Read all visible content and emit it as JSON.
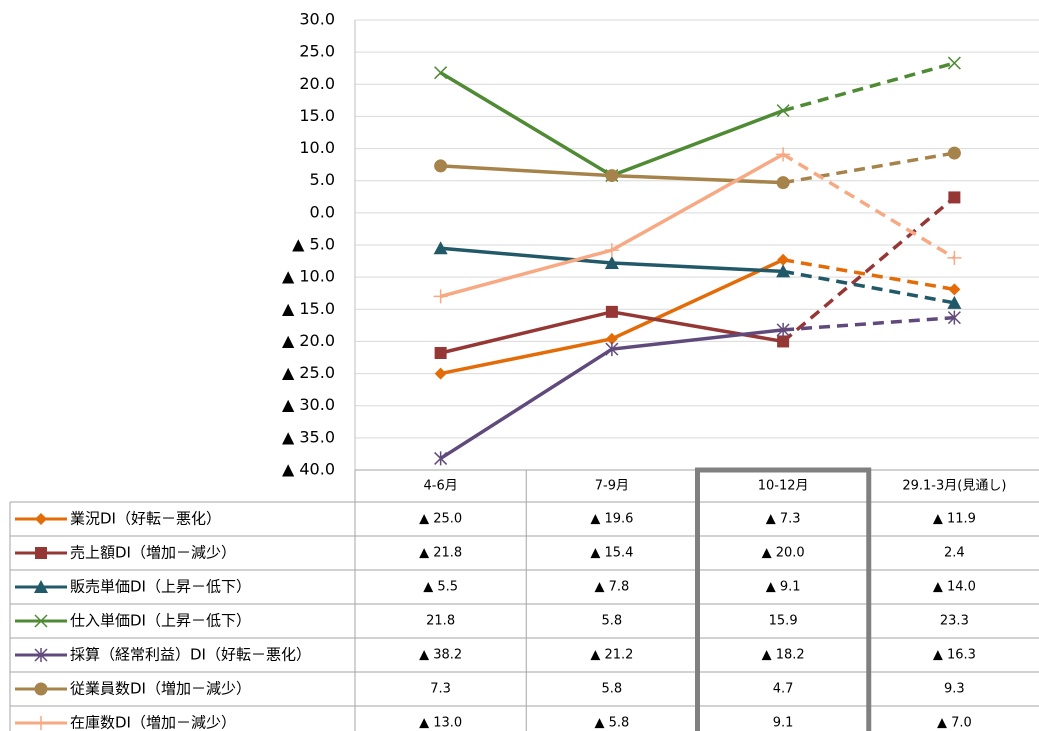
{
  "chart_data": {
    "type": "line",
    "categories": [
      "4-6月",
      "7-9月",
      "10-12月",
      "29.1-3月(見通し)"
    ],
    "ylim": [
      -40,
      30
    ],
    "yticks": [
      {
        "value": 30,
        "label": "30.0"
      },
      {
        "value": 25,
        "label": "25.0"
      },
      {
        "value": 20,
        "label": "20.0"
      },
      {
        "value": 15,
        "label": "15.0"
      },
      {
        "value": 10,
        "label": "10.0"
      },
      {
        "value": 5,
        "label": "5.0"
      },
      {
        "value": 0,
        "label": "0.0"
      },
      {
        "value": -5,
        "label": "▲ 5.0"
      },
      {
        "value": -10,
        "label": "▲ 10.0"
      },
      {
        "value": -15,
        "label": "▲ 15.0"
      },
      {
        "value": -20,
        "label": "▲ 20.0"
      },
      {
        "value": -25,
        "label": "▲ 25.0"
      },
      {
        "value": -30,
        "label": "▲ 30.0"
      },
      {
        "value": -35,
        "label": "▲ 35.0"
      },
      {
        "value": -40,
        "label": "▲ 40.0"
      }
    ],
    "grid": true,
    "dashed_last_segment": true,
    "highlight_index": 2,
    "series": [
      {
        "name": "業況DI（好転－悪化）",
        "color": "#e36c09",
        "marker": "diamond",
        "values": [
          -25.0,
          -19.6,
          -7.3,
          -11.9
        ],
        "value_labels": [
          "▲ 25.0",
          "▲ 19.6",
          "▲ 7.3",
          "▲ 11.9"
        ]
      },
      {
        "name": "売上額DI（増加－減少）",
        "color": "#953735",
        "marker": "square",
        "values": [
          -21.8,
          -15.4,
          -20.0,
          2.4
        ],
        "value_labels": [
          "▲ 21.8",
          "▲ 15.4",
          "▲ 20.0",
          "2.4"
        ]
      },
      {
        "name": "販売単価DI（上昇－低下）",
        "color": "#215968",
        "marker": "triangle",
        "values": [
          -5.5,
          -7.8,
          -9.1,
          -14.0
        ],
        "value_labels": [
          "▲ 5.5",
          "▲ 7.8",
          "▲ 9.1",
          "▲ 14.0"
        ]
      },
      {
        "name": "仕入単価DI（上昇－低下）",
        "color": "#4f8a35",
        "marker": "x",
        "values": [
          21.8,
          5.8,
          15.9,
          23.3
        ],
        "value_labels": [
          "21.8",
          "5.8",
          "15.9",
          "23.3"
        ]
      },
      {
        "name": "採算（経常利益）DI（好転－悪化）",
        "color": "#604a7b",
        "marker": "asterisk",
        "values": [
          -38.2,
          -21.2,
          -18.2,
          -16.3
        ],
        "value_labels": [
          "▲ 38.2",
          "▲ 21.2",
          "▲ 18.2",
          "▲ 16.3"
        ]
      },
      {
        "name": "従業員数DI（増加－減少）",
        "color": "#a6834a",
        "marker": "circle",
        "values": [
          7.3,
          5.8,
          4.7,
          9.3
        ],
        "value_labels": [
          "7.3",
          "5.8",
          "4.7",
          "9.3"
        ]
      },
      {
        "name": "在庫数DI（増加－減少）",
        "color": "#f7a983",
        "marker": "plus",
        "values": [
          -13.0,
          -5.8,
          9.1,
          -7.0
        ],
        "value_labels": [
          "▲ 13.0",
          "▲ 5.8",
          "9.1",
          "▲ 7.0"
        ]
      }
    ]
  }
}
